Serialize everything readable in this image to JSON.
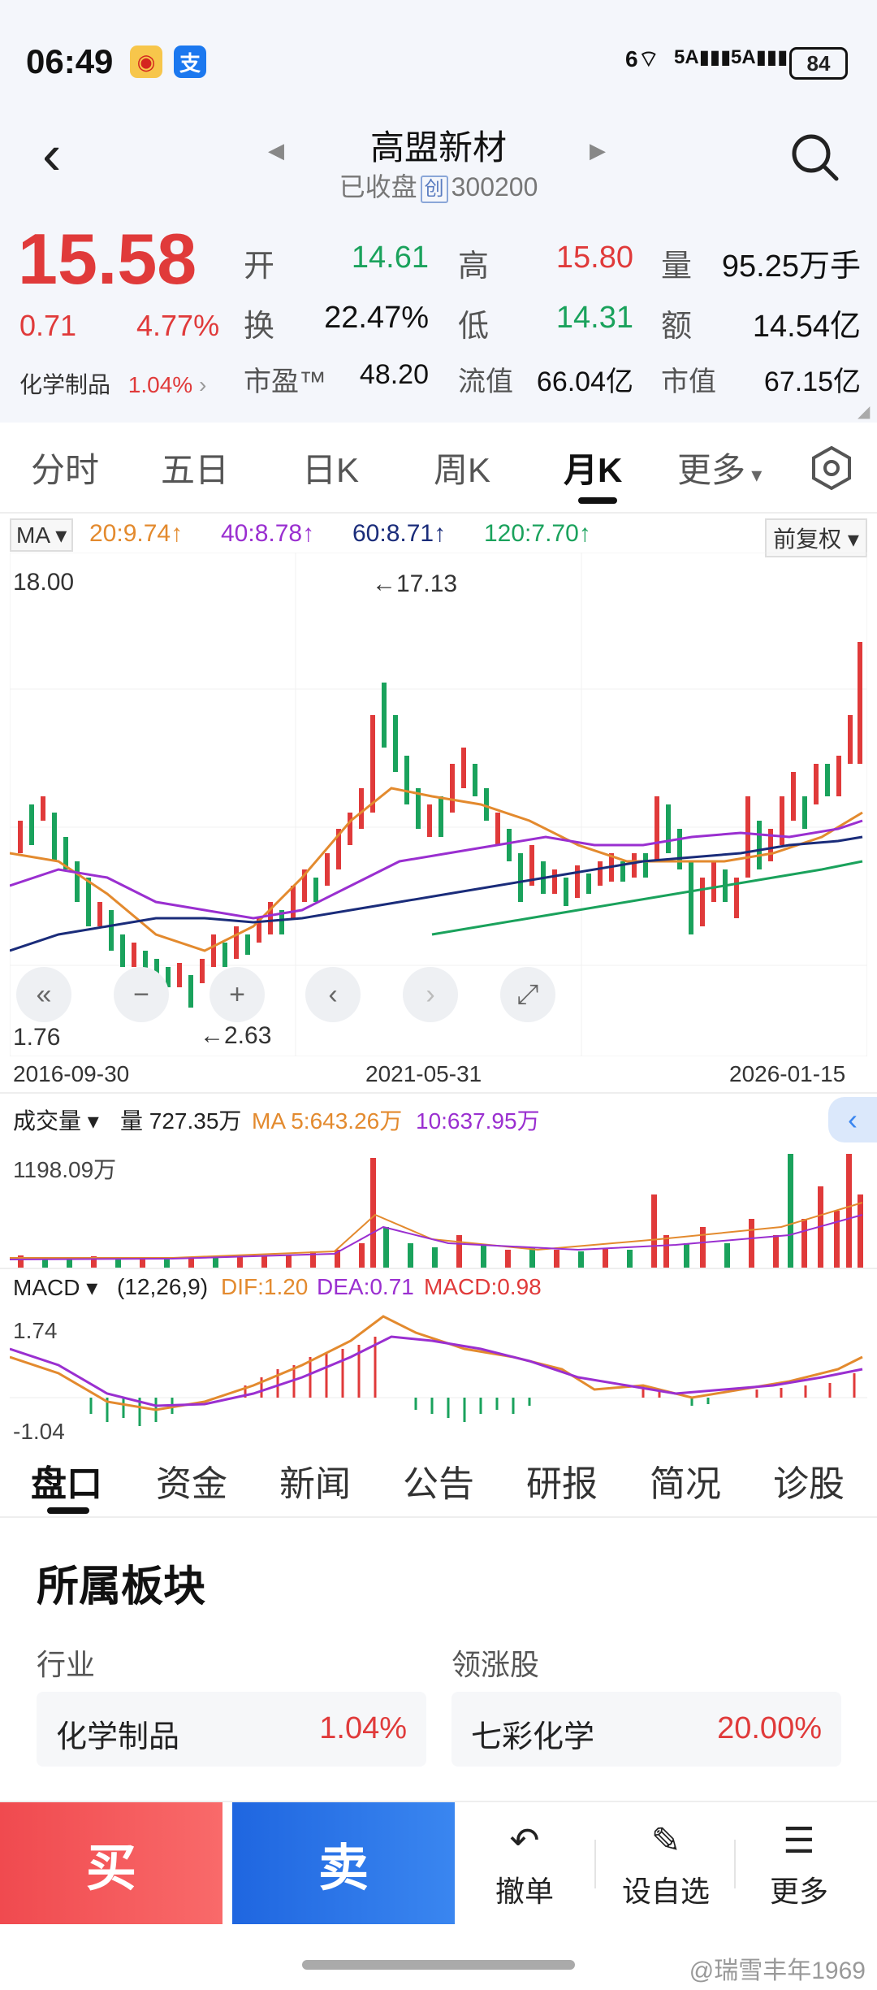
{
  "status": {
    "time": "06:49",
    "battery": "84",
    "signal1": "5A",
    "signal2": "5A",
    "wifi": "6"
  },
  "header": {
    "title": "高盟新材",
    "status_text": "已收盘",
    "board_tag": "创",
    "code": "300200"
  },
  "quote": {
    "price": "15.58",
    "change": "0.71",
    "change_pct": "4.77%",
    "sector_name": "化学制品",
    "sector_pct": "1.04%",
    "open_label": "开",
    "open": "14.61",
    "high_label": "高",
    "high": "15.80",
    "vol_label": "量",
    "vol": "95.25万手",
    "turnover_label": "换",
    "turnover": "22.47%",
    "low_label": "低",
    "low": "14.31",
    "amount_label": "额",
    "amount": "14.54亿",
    "pe_label": "市盈™",
    "pe": "48.20",
    "float_label": "流值",
    "float_cap": "66.04亿",
    "mcap_label": "市值",
    "mcap": "67.15亿"
  },
  "chart_tabs": [
    "分时",
    "五日",
    "日K",
    "周K",
    "月K",
    "更多"
  ],
  "chart_tab_active": "月K",
  "ma": {
    "label": "MA",
    "ma20": "20:9.74↑",
    "ma40": "40:8.78↑",
    "ma60": "60:8.71↑",
    "ma120": "120:7.70↑",
    "adjust": "前复权"
  },
  "kchart": {
    "ymax": "18.00",
    "ymin": "1.76",
    "high_mark": "←17.13",
    "low_mark": "←2.63",
    "dates": [
      "2016-09-30",
      "2021-05-31",
      "2026-01-15"
    ]
  },
  "volume": {
    "label": "成交量",
    "vol": "量 727.35万",
    "ma5": "MA 5:643.26万",
    "ma10": "10:637.95万",
    "ymax": "1198.09万"
  },
  "macd": {
    "label": "MACD",
    "params": "(12,26,9)",
    "dif": "DIF:1.20",
    "dea": "DEA:0.71",
    "macd": "MACD:0.98",
    "ymax": "1.74",
    "ymin": "-1.04"
  },
  "bottom_tabs": [
    "盘口",
    "资金",
    "新闻",
    "公告",
    "研报",
    "简况",
    "诊股"
  ],
  "section": {
    "title": "所属板块",
    "industry_label": "行业",
    "leader_label": "领涨股",
    "industry_name": "化学制品",
    "industry_pct": "1.04%",
    "leader_name": "七彩化学",
    "leader_pct": "20.00%"
  },
  "actions": {
    "buy": "买",
    "sell": "卖",
    "cancel": "撤单",
    "watch": "设自选",
    "more": "更多"
  },
  "watermark": "@瑞雪丰年1969",
  "colors": {
    "up": "#e03a3a",
    "down": "#1aa25c",
    "ma20": "#e38a2e",
    "ma40": "#9a2fd0",
    "ma60": "#1a2c7a",
    "ma120": "#1aa25c"
  }
}
